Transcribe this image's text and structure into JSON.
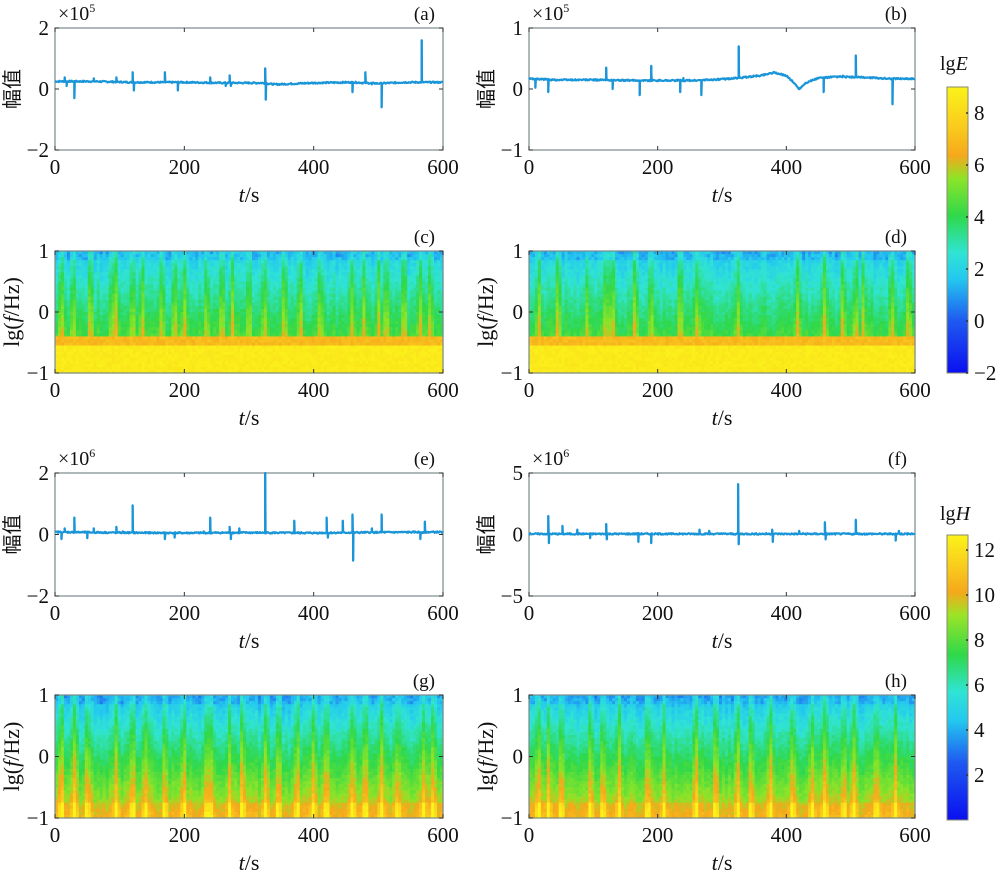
{
  "figure": {
    "colors": {
      "line": "#1a95d8",
      "frame": "#7a8a8a",
      "text": "#111111"
    }
  },
  "chart_data": [
    {
      "id": "a",
      "type": "line",
      "panel_label": "(a)",
      "xlabel_italic": "t",
      "xlabel_unit": "/s",
      "ylabel": "幅值",
      "multiplier_prefix": "×10",
      "multiplier_exp": "5",
      "xlim": [
        0,
        600
      ],
      "ylim": [
        -2,
        2
      ],
      "xticks": [
        "0",
        "200",
        "400",
        "600"
      ],
      "yticks": [
        "2",
        "0",
        "−2"
      ],
      "baseline": [
        [
          0,
          0.25
        ],
        [
          60,
          0.25
        ],
        [
          120,
          0.22
        ],
        [
          200,
          0.22
        ],
        [
          260,
          0.2
        ],
        [
          320,
          0.2
        ],
        [
          340,
          0.15
        ],
        [
          400,
          0.2
        ],
        [
          460,
          0.22
        ],
        [
          500,
          0.18
        ],
        [
          540,
          0.22
        ],
        [
          600,
          0.22
        ]
      ],
      "spikes": [
        [
          15,
          0.38
        ],
        [
          18,
          0.1
        ],
        [
          30,
          -0.3
        ],
        [
          60,
          0.35
        ],
        [
          95,
          0.38
        ],
        [
          120,
          0.55
        ],
        [
          122,
          -0.05
        ],
        [
          170,
          0.55
        ],
        [
          190,
          -0.05
        ],
        [
          240,
          0.38
        ],
        [
          264,
          0.1
        ],
        [
          270,
          0.45
        ],
        [
          272,
          0.1
        ],
        [
          325,
          0.68
        ],
        [
          326,
          -0.35
        ],
        [
          460,
          -0.1
        ],
        [
          480,
          0.55
        ],
        [
          490,
          0.15
        ],
        [
          505,
          -0.6
        ],
        [
          567,
          1.6
        ]
      ]
    },
    {
      "id": "b",
      "type": "line",
      "panel_label": "(b)",
      "xlabel_italic": "t",
      "xlabel_unit": "/s",
      "ylabel": "幅值",
      "multiplier_prefix": "×10",
      "multiplier_exp": "5",
      "xlim": [
        0,
        600
      ],
      "ylim": [
        -1,
        1
      ],
      "xticks": [
        "0",
        "200",
        "400",
        "600"
      ],
      "yticks": [
        "1",
        "0",
        "−1"
      ],
      "baseline": [
        [
          0,
          0.17
        ],
        [
          40,
          0.15
        ],
        [
          100,
          0.15
        ],
        [
          160,
          0.14
        ],
        [
          200,
          0.14
        ],
        [
          260,
          0.14
        ],
        [
          300,
          0.16
        ],
        [
          325,
          0.18
        ],
        [
          360,
          0.22
        ],
        [
          380,
          0.27
        ],
        [
          400,
          0.22
        ],
        [
          410,
          0.12
        ],
        [
          420,
          0.0
        ],
        [
          430,
          0.1
        ],
        [
          450,
          0.18
        ],
        [
          480,
          0.2
        ],
        [
          520,
          0.19
        ],
        [
          560,
          0.17
        ],
        [
          600,
          0.17
        ]
      ],
      "spikes": [
        [
          10,
          0.02
        ],
        [
          30,
          -0.05
        ],
        [
          60,
          0.15
        ],
        [
          120,
          0.35
        ],
        [
          130,
          0.0
        ],
        [
          172,
          -0.1
        ],
        [
          190,
          0.38
        ],
        [
          235,
          -0.05
        ],
        [
          240,
          0.18
        ],
        [
          268,
          -0.1
        ],
        [
          326,
          0.7
        ],
        [
          458,
          -0.05
        ],
        [
          488,
          0.22
        ],
        [
          508,
          0.55
        ],
        [
          565,
          -0.25
        ]
      ]
    },
    {
      "id": "c",
      "type": "heatmap",
      "panel_label": "(c)",
      "xlabel_italic": "t",
      "xlabel_unit": "/s",
      "ylabel_prefix": "lg(",
      "ylabel_italic": "f",
      "ylabel_suffix": "/Hz)",
      "xlim": [
        0,
        600
      ],
      "ylim": [
        -1,
        1
      ],
      "xticks": [
        "0",
        "200",
        "400",
        "600"
      ],
      "yticks": [
        "1",
        "0",
        "−1"
      ],
      "colorbar": "E",
      "band_level": -0.45,
      "bursts": [
        10,
        28,
        55,
        88,
        95,
        120,
        135,
        165,
        185,
        200,
        235,
        258,
        275,
        300,
        325,
        355,
        380,
        410,
        460,
        478,
        500,
        512,
        540,
        565,
        580
      ]
    },
    {
      "id": "d",
      "type": "heatmap",
      "panel_label": "(d)",
      "xlabel_italic": "t",
      "xlabel_unit": "/s",
      "ylabel_prefix": "lg(",
      "ylabel_italic": "f",
      "ylabel_suffix": "/Hz)",
      "xlim": [
        0,
        600
      ],
      "ylim": [
        -1,
        1
      ],
      "xticks": [
        "0",
        "200",
        "400",
        "600"
      ],
      "yticks": [
        "1",
        "0",
        "−1"
      ],
      "colorbar": "E",
      "band_level": -0.45,
      "bursts": [
        15,
        45,
        90,
        120,
        130,
        165,
        190,
        235,
        262,
        325,
        418,
        460,
        488,
        508,
        520,
        565,
        590
      ]
    },
    {
      "id": "e",
      "type": "line",
      "panel_label": "(e)",
      "xlabel_italic": "t",
      "xlabel_unit": "/s",
      "ylabel": "幅值",
      "multiplier_prefix": "×10",
      "multiplier_exp": "6",
      "xlim": [
        0,
        600
      ],
      "ylim": [
        -2,
        2
      ],
      "xticks": [
        "0",
        "200",
        "400",
        "600"
      ],
      "yticks": [
        "2",
        "0",
        "−2"
      ],
      "baseline": [
        [
          0,
          0.08
        ],
        [
          100,
          0.06
        ],
        [
          200,
          0.05
        ],
        [
          300,
          0.06
        ],
        [
          400,
          0.05
        ],
        [
          500,
          0.07
        ],
        [
          600,
          0.08
        ]
      ],
      "spikes": [
        [
          10,
          -0.15
        ],
        [
          15,
          0.2
        ],
        [
          30,
          0.55
        ],
        [
          50,
          -0.12
        ],
        [
          60,
          0.2
        ],
        [
          95,
          0.25
        ],
        [
          105,
          0.1
        ],
        [
          120,
          0.95
        ],
        [
          170,
          -0.15
        ],
        [
          185,
          -0.1
        ],
        [
          230,
          0.1
        ],
        [
          240,
          0.55
        ],
        [
          270,
          0.25
        ],
        [
          272,
          -0.15
        ],
        [
          285,
          0.2
        ],
        [
          325,
          2.0
        ],
        [
          370,
          0.45
        ],
        [
          420,
          0.55
        ],
        [
          422,
          -0.1
        ],
        [
          445,
          0.45
        ],
        [
          460,
          0.65
        ],
        [
          461,
          -0.85
        ],
        [
          490,
          0.2
        ],
        [
          505,
          0.65
        ],
        [
          565,
          -0.15
        ],
        [
          572,
          0.42
        ]
      ]
    },
    {
      "id": "f",
      "type": "line",
      "panel_label": "(f)",
      "xlabel_italic": "t",
      "xlabel_unit": "/s",
      "ylabel": "幅值",
      "multiplier_prefix": "×10",
      "multiplier_exp": "6",
      "xlim": [
        0,
        600
      ],
      "ylim": [
        -5,
        5
      ],
      "xticks": [
        "0",
        "200",
        "400",
        "600"
      ],
      "yticks": [
        "5",
        "0",
        "−5"
      ],
      "baseline": [
        [
          0,
          0.05
        ],
        [
          200,
          0.05
        ],
        [
          400,
          0.05
        ],
        [
          600,
          0.05
        ]
      ],
      "spikes": [
        [
          30,
          1.5
        ],
        [
          31,
          -0.7
        ],
        [
          52,
          0.7
        ],
        [
          75,
          0.4
        ],
        [
          95,
          -0.3
        ],
        [
          120,
          0.85
        ],
        [
          121,
          -0.4
        ],
        [
          170,
          -0.6
        ],
        [
          190,
          -0.7
        ],
        [
          265,
          0.4
        ],
        [
          280,
          0.3
        ],
        [
          325,
          4.1
        ],
        [
          326,
          -0.8
        ],
        [
          378,
          0.4
        ],
        [
          379,
          -0.6
        ],
        [
          420,
          0.3
        ],
        [
          460,
          1.0
        ],
        [
          461,
          -0.4
        ],
        [
          508,
          1.2
        ],
        [
          570,
          -0.5
        ],
        [
          575,
          0.3
        ]
      ]
    },
    {
      "id": "g",
      "type": "heatmap",
      "panel_label": "(g)",
      "xlabel_italic": "t",
      "xlabel_unit": "/s",
      "ylabel_prefix": "lg(",
      "ylabel_italic": "f",
      "ylabel_suffix": "/Hz)",
      "xlim": [
        0,
        600
      ],
      "ylim": [
        -1,
        1
      ],
      "xticks": [
        "0",
        "200",
        "400",
        "600"
      ],
      "yticks": [
        "1",
        "0",
        "−1"
      ],
      "colorbar": "H",
      "band_level": -0.75,
      "bursts": [
        10,
        30,
        50,
        95,
        120,
        140,
        170,
        200,
        235,
        240,
        270,
        290,
        325,
        345,
        375,
        400,
        420,
        460,
        480,
        505,
        530,
        570,
        585
      ]
    },
    {
      "id": "h",
      "type": "heatmap",
      "panel_label": "(h)",
      "xlabel_italic": "t",
      "xlabel_unit": "/s",
      "ylabel_prefix": "lg(",
      "ylabel_italic": "f",
      "ylabel_suffix": "/Hz)",
      "xlim": [
        0,
        600
      ],
      "ylim": [
        -1,
        1
      ],
      "xticks": [
        "0",
        "200",
        "400",
        "600"
      ],
      "yticks": [
        "1",
        "0",
        "−1"
      ],
      "colorbar": "H",
      "band_level": -0.75,
      "bursts": [
        15,
        30,
        50,
        95,
        115,
        140,
        185,
        210,
        260,
        290,
        325,
        345,
        375,
        410,
        440,
        460,
        490,
        505,
        540,
        570
      ]
    }
  ],
  "colorbars": {
    "E": {
      "title_prefix": "lg",
      "title_italic": "E",
      "range": [
        -2,
        9
      ],
      "ticks": [
        "8",
        "6",
        "4",
        "2",
        "0",
        "−2"
      ],
      "tick_values": [
        8,
        6,
        4,
        2,
        0,
        -2
      ]
    },
    "H": {
      "title_prefix": "lg",
      "title_italic": "H",
      "range": [
        0,
        12.67
      ],
      "ticks": [
        "12",
        "10",
        "8",
        "6",
        "4",
        "2"
      ],
      "tick_values": [
        12,
        10,
        8,
        6,
        4,
        2
      ]
    }
  }
}
